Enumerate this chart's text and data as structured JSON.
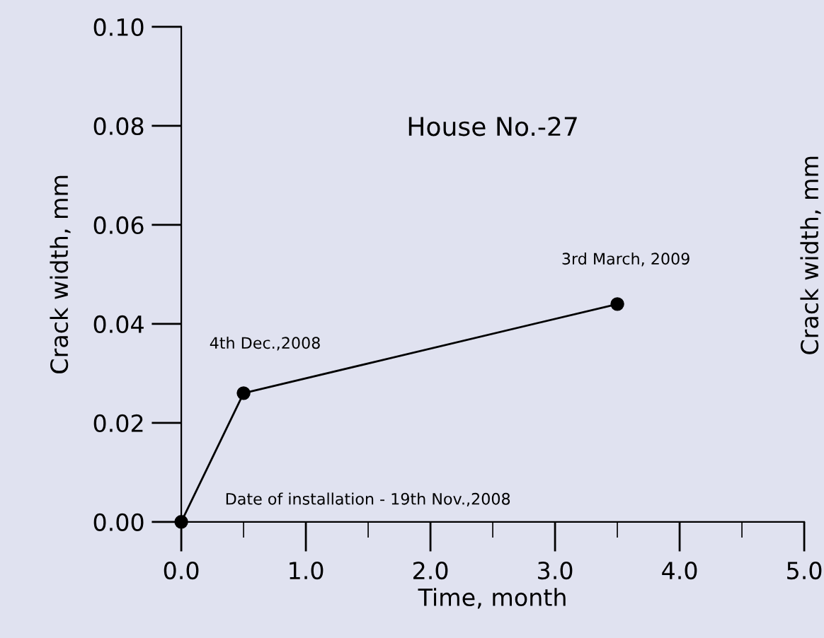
{
  "chart_data": {
    "type": "line",
    "title": "House No.-27",
    "xlabel": "Time, month",
    "ylabel": "Crack width, mm",
    "y2label": "Crack width, mm",
    "x": [
      0,
      0.5,
      3.5
    ],
    "series": [
      {
        "color": "#000000",
        "values": [
          0,
          0.026,
          0.044
        ]
      }
    ],
    "marker": "circle",
    "line_style": "solid",
    "grid": false,
    "legend": false,
    "xlim": [
      0,
      5
    ],
    "xticks": [
      {
        "value": 0,
        "label": "0.0"
      },
      {
        "value": 1,
        "label": "1.0"
      },
      {
        "value": 2,
        "label": "2.0"
      },
      {
        "value": 3,
        "label": "3.0"
      },
      {
        "value": 4,
        "label": "4.0"
      },
      {
        "value": 5,
        "label": "5.0"
      }
    ],
    "ylim": [
      0,
      0.1
    ],
    "yticks": [
      {
        "value": 0,
        "label": "0.00"
      },
      {
        "value": 0.02,
        "label": "0.02"
      },
      {
        "value": 0.04,
        "label": "0.04"
      },
      {
        "value": 0.06,
        "label": "0.06"
      },
      {
        "value": 0.08,
        "label": "0.08"
      },
      {
        "value": 0.1,
        "label": "0.10"
      }
    ],
    "annotations": [
      "Date of installation - 19th Nov.,2008",
      "4th Dec.,2008",
      "3rd March, 2009"
    ]
  }
}
